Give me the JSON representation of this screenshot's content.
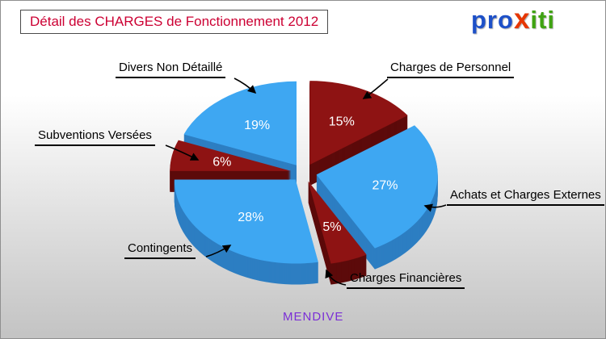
{
  "title": "Détail des CHARGES de Fonctionnement 2012",
  "footer": "MENDIVE",
  "logo": {
    "part1": "pro",
    "part2": "x",
    "part3": "iti"
  },
  "chart_data": {
    "type": "pie",
    "title": "Détail des CHARGES de Fonctionnement 2012",
    "unit": "percent",
    "start_angle_deg": 0,
    "clockwise": true,
    "effect": "3d-exploded",
    "legend_position": "callout-labels",
    "slices": [
      {
        "label": "Charges de Personnel",
        "value": 15,
        "percent_label": "15%",
        "color": "#8e1313",
        "side": "#5c0a0a"
      },
      {
        "label": "Achats et Charges Externes",
        "value": 27,
        "percent_label": "27%",
        "color": "#3ea7f2",
        "side": "#2d7ec2"
      },
      {
        "label": "Charges Financières",
        "value": 5,
        "percent_label": "5%",
        "color": "#8e1313",
        "side": "#5c0a0a"
      },
      {
        "label": "Contingents",
        "value": 28,
        "percent_label": "28%",
        "color": "#3ea7f2",
        "side": "#2d7ec2"
      },
      {
        "label": "Subventions Versées",
        "value": 6,
        "percent_label": "6%",
        "color": "#8e1313",
        "side": "#5c0a0a"
      },
      {
        "label": "Divers Non Détaillé",
        "value": 19,
        "percent_label": "19%",
        "color": "#3ea7f2",
        "side": "#2d7ec2"
      }
    ],
    "footer_label": "MENDIVE",
    "colors": {
      "title": "#cc0033",
      "footer": "#7b2fd6",
      "blue": "#3ea7f2",
      "dark_red": "#8e1313"
    }
  }
}
